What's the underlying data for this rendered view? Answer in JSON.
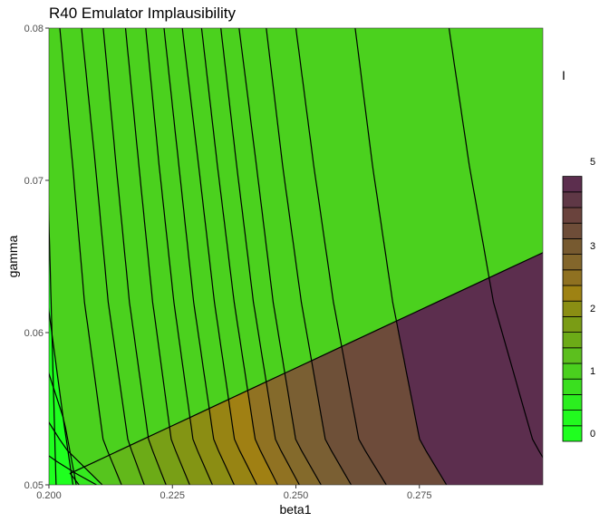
{
  "chart_data": {
    "type": "filled-contour",
    "title": "R40  Emulator Implausibility",
    "xlabel": "beta1",
    "ylabel": "gamma",
    "xlim": [
      0.2,
      0.3
    ],
    "ylim": [
      0.05,
      0.08
    ],
    "x_ticks": [
      {
        "value": 0.2,
        "label": "0.200"
      },
      {
        "value": 0.225,
        "label": "0.225"
      },
      {
        "value": 0.25,
        "label": "0.250"
      },
      {
        "value": 0.275,
        "label": "0.275"
      }
    ],
    "y_ticks": [
      {
        "value": 0.05,
        "label": "0.05"
      },
      {
        "value": 0.06,
        "label": "0.06"
      },
      {
        "value": 0.07,
        "label": "0.07"
      },
      {
        "value": 0.08,
        "label": "0.08"
      }
    ],
    "contour_curves": [
      {
        "level": 0.3,
        "points": [
          [
            0.2,
            0.0672
          ],
          [
            0.201,
            0.0553
          ]
        ]
      },
      {
        "level": 0.6,
        "points": [
          [
            0.2,
            0.0614
          ],
          [
            0.203,
            0.0541
          ],
          [
            0.2035,
            0.053
          ]
        ]
      },
      {
        "level": 0.9,
        "points": [
          [
            0.2,
            0.0573
          ],
          [
            0.2031,
            0.0542
          ],
          [
            0.2042,
            0.0523
          ]
        ]
      },
      {
        "level": 1.2,
        "points": [
          [
            0.2,
            0.0541
          ],
          [
            0.2033,
            0.0524
          ],
          [
            0.2058,
            0.0516
          ]
        ]
      },
      {
        "level": 1.5,
        "points": [
          [
            0.2,
            0.0519
          ],
          [
            0.2035,
            0.0511
          ],
          [
            0.2074,
            0.0504
          ]
        ]
      },
      {
        "level": 1.8,
        "points": [
          [
            0.2,
            0.0501
          ],
          [
            0.2033,
            0.0506
          ],
          [
            0.2061,
            0.05
          ]
        ]
      },
      {
        "level": 2.1,
        "points": [
          [
            0.2022,
            0.08
          ],
          [
            0.2048,
            0.071
          ],
          [
            0.2072,
            0.062
          ],
          [
            0.211,
            0.0529
          ],
          [
            0.2147,
            0.05
          ]
        ]
      },
      {
        "level": 2.4,
        "points": [
          [
            0.2066,
            0.08
          ],
          [
            0.2094,
            0.071
          ],
          [
            0.212,
            0.062
          ],
          [
            0.216,
            0.0529
          ],
          [
            0.2193,
            0.05
          ]
        ]
      },
      {
        "level": 2.7,
        "points": [
          [
            0.211,
            0.08
          ],
          [
            0.2136,
            0.071
          ],
          [
            0.2163,
            0.062
          ],
          [
            0.2202,
            0.0529
          ],
          [
            0.2237,
            0.05
          ]
        ]
      },
      {
        "level": 3.0,
        "points": [
          [
            0.2155,
            0.08
          ],
          [
            0.2182,
            0.071
          ],
          [
            0.221,
            0.062
          ],
          [
            0.2248,
            0.0529
          ],
          [
            0.2285,
            0.05
          ]
        ]
      },
      {
        "level": 3.3,
        "points": [
          [
            0.2196,
            0.08
          ],
          [
            0.2223,
            0.071
          ],
          [
            0.2253,
            0.062
          ],
          [
            0.2292,
            0.0529
          ],
          [
            0.2331,
            0.05
          ]
        ]
      },
      {
        "level": 3.6,
        "points": [
          [
            0.2233,
            0.08
          ],
          [
            0.2263,
            0.071
          ],
          [
            0.2293,
            0.062
          ],
          [
            0.2334,
            0.0529
          ],
          [
            0.2375,
            0.05
          ]
        ]
      },
      {
        "level": 3.9,
        "points": [
          [
            0.227,
            0.08
          ],
          [
            0.2303,
            0.071
          ],
          [
            0.2335,
            0.062
          ],
          [
            0.2376,
            0.0529
          ],
          [
            0.2421,
            0.05
          ]
        ]
      },
      {
        "level": 4.2,
        "points": [
          [
            0.2309,
            0.08
          ],
          [
            0.2341,
            0.071
          ],
          [
            0.2375,
            0.062
          ],
          [
            0.2418,
            0.0529
          ],
          [
            0.2463,
            0.05
          ]
        ]
      },
      {
        "level": 4.5,
        "points": [
          [
            0.2348,
            0.08
          ],
          [
            0.238,
            0.071
          ],
          [
            0.2414,
            0.062
          ],
          [
            0.2459,
            0.0529
          ],
          [
            0.2507,
            0.05
          ]
        ]
      },
      {
        "level": 4.8,
        "points": [
          [
            0.2385,
            0.08
          ],
          [
            0.242,
            0.071
          ],
          [
            0.2454,
            0.062
          ],
          [
            0.25,
            0.0529
          ],
          [
            0.2551,
            0.05
          ]
        ]
      },
      {
        "level": 5.1,
        "points": [
          [
            0.244,
            0.08
          ],
          [
            0.2473,
            0.071
          ],
          [
            0.2511,
            0.062
          ],
          [
            0.256,
            0.0529
          ],
          [
            0.2612,
            0.05
          ]
        ]
      },
      {
        "level": 5.4,
        "points": [
          [
            0.25,
            0.08
          ],
          [
            0.2536,
            0.071
          ],
          [
            0.2576,
            0.062
          ],
          [
            0.2628,
            0.0529
          ],
          [
            0.2683,
            0.05
          ]
        ]
      },
      {
        "level": 5.7,
        "points": [
          [
            0.262,
            0.08
          ],
          [
            0.2655,
            0.071
          ],
          [
            0.2696,
            0.062
          ],
          [
            0.2751,
            0.0529
          ],
          [
            0.2805,
            0.05
          ]
        ]
      },
      {
        "level": 6.0,
        "points": [
          [
            0.281,
            0.08
          ],
          [
            0.2851,
            0.071
          ],
          [
            0.29,
            0.062
          ],
          [
            0.298,
            0.0529
          ],
          [
            0.3,
            0.0518
          ]
        ]
      }
    ],
    "band_colors_left_to_right": [
      "#1fff1f",
      "#1fff1f",
      "#2bf51f",
      "#35e91f",
      "#40dd1f",
      "#4bd11e",
      "#56c51e",
      "#62b81a",
      "#6cab17",
      "#789f16",
      "#839514",
      "#8b8d13",
      "#978413",
      "#a08013",
      "#907222",
      "#846a2b",
      "#7a5f33",
      "#6e5038",
      "#6d4b3a",
      "#5c2e4e"
    ],
    "legend": {
      "title": "I",
      "placement": "right",
      "labels": [
        {
          "value": 0,
          "label": "0"
        },
        {
          "value": 1,
          "label": "1"
        },
        {
          "value": 2,
          "label": "2"
        },
        {
          "value": 3,
          "label": "3"
        },
        {
          "value": 5,
          "label": "5"
        }
      ],
      "swatches": [
        {
          "value": 0.0,
          "color": "#1fff1f"
        },
        {
          "value": 0.5,
          "color": "#22fa1f"
        },
        {
          "value": 1.0,
          "color": "#2bef1f"
        },
        {
          "value": 1.5,
          "color": "#3adf1f"
        },
        {
          "value": 2.0,
          "color": "#4ad01e"
        },
        {
          "value": 2.5,
          "color": "#5cbf1e"
        },
        {
          "value": 3.0,
          "color": "#6cab17"
        },
        {
          "value": 3.5,
          "color": "#7a9c15"
        },
        {
          "value": 4.0,
          "color": "#8a8e13"
        },
        {
          "value": 4.5,
          "color": "#9e8213"
        },
        {
          "value": 5.0,
          "color": "#8f7121"
        },
        {
          "value": 5.5,
          "color": "#83662b"
        },
        {
          "value": 6.0,
          "color": "#775a30"
        },
        {
          "value": 6.5,
          "color": "#6e4d38"
        },
        {
          "value": 7.0,
          "color": "#6a433d"
        },
        {
          "value": 7.5,
          "color": "#5f3846"
        },
        {
          "value": 8.0,
          "color": "#5c2e4e"
        }
      ]
    },
    "grid": false
  }
}
